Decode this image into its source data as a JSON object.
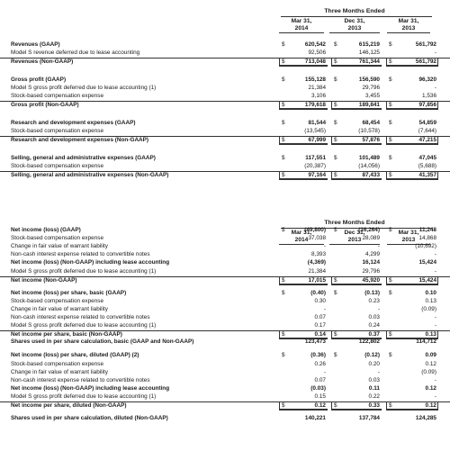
{
  "header1": {
    "title": "Three Months Ended",
    "cols": [
      {
        "line1": "Mar 31,",
        "line2": "2014"
      },
      {
        "line1": "Dec 31,",
        "line2": "2013"
      },
      {
        "line1": "Mar 31,",
        "line2": "2013"
      }
    ]
  },
  "table1": [
    {
      "label": "Revenues (GAAP)",
      "bold": true,
      "cur": [
        "$",
        "$",
        "$"
      ],
      "v": [
        "620,542",
        "615,219",
        "561,792"
      ]
    },
    {
      "label": "Model S revenue deferred due to lease accounting",
      "bold": false,
      "v": [
        "92,506",
        "146,125",
        "-"
      ]
    },
    {
      "label": "Revenues (Non-GAAP)",
      "bold": true,
      "total": true,
      "cur": [
        "$",
        "$",
        "$"
      ],
      "v": [
        "713,048",
        "761,344",
        "561,792"
      ]
    },
    {
      "gap": true
    },
    {
      "label": "Gross profit (GAAP)",
      "bold": true,
      "cur": [
        "$",
        "$",
        "$"
      ],
      "v": [
        "155,128",
        "156,590",
        "96,320"
      ]
    },
    {
      "label": "Model S gross profit deferred due to lease accounting (1)",
      "bold": false,
      "v": [
        "21,384",
        "29,796",
        "-"
      ]
    },
    {
      "label": "Stock-based compensation expense",
      "bold": false,
      "v": [
        "3,106",
        "3,455",
        "1,536"
      ]
    },
    {
      "label": "Gross profit (Non-GAAP)",
      "bold": true,
      "total": true,
      "cur": [
        "$",
        "$",
        "$"
      ],
      "v": [
        "179,618",
        "189,841",
        "97,856"
      ]
    },
    {
      "gap": true
    },
    {
      "label": "Research and development expenses (GAAP)",
      "bold": true,
      "cur": [
        "$",
        "$",
        "$"
      ],
      "v": [
        "81,544",
        "68,454",
        "54,859"
      ]
    },
    {
      "label": "Stock-based compensation expense",
      "bold": false,
      "v": [
        "(13,545)",
        "(10,578)",
        "(7,644)"
      ]
    },
    {
      "label": "Research and development expenses (Non-GAAP)",
      "bold": true,
      "total": true,
      "cur": [
        "$",
        "$",
        "$"
      ],
      "v": [
        "67,999",
        "57,876",
        "47,215"
      ]
    },
    {
      "gap": true
    },
    {
      "label": "Selling, general and administrative expenses (GAAP)",
      "bold": true,
      "cur": [
        "$",
        "$",
        "$"
      ],
      "v": [
        "117,551",
        "101,489",
        "47,045"
      ]
    },
    {
      "label": "Stock-based compensation expense",
      "bold": false,
      "v": [
        "(20,387)",
        "(14,056)",
        "(5,688)"
      ]
    },
    {
      "label": "Selling, general and administrative expenses (Non-GAAP)",
      "bold": true,
      "total": true,
      "cur": [
        "$",
        "$",
        "$"
      ],
      "v": [
        "97,164",
        "87,433",
        "41,357"
      ]
    }
  ],
  "header2": {
    "title": "Three Months Ended",
    "cols": [
      {
        "line1": "Mar 31,",
        "line2": "2014"
      },
      {
        "line1": "Dec 31,",
        "line2": "2013"
      },
      {
        "line1": "Mar 31,",
        "line2": "2013"
      }
    ]
  },
  "table2": [
    {
      "label": "Net income (loss) (GAAP)",
      "bold": true,
      "cur": [
        "$",
        "$",
        "$"
      ],
      "v": [
        "(49,800)",
        "(16,264)",
        "11,248"
      ]
    },
    {
      "label": "Stock-based compensation expense",
      "bold": false,
      "v": [
        "37,038",
        "28,089",
        "14,868"
      ]
    },
    {
      "label": "Change in fair value of warrant liability",
      "bold": false,
      "v": [
        "-",
        "-",
        "(10,692)"
      ]
    },
    {
      "label": "Non-cash interest expense related to convertible notes",
      "bold": false,
      "v": [
        "8,393",
        "4,299",
        "-"
      ]
    },
    {
      "label": "Net income (loss) (Non-GAAP) including lease accounting",
      "bold": true,
      "v": [
        "(4,369)",
        "16,124",
        "15,424"
      ]
    },
    {
      "label": "Model S gross profit deferred due to lease accounting (1)",
      "bold": false,
      "v": [
        "21,384",
        "29,796",
        "-"
      ]
    },
    {
      "label": "Net income (Non-GAAP)",
      "bold": true,
      "total": true,
      "cur": [
        "$",
        "$",
        "$"
      ],
      "v": [
        "17,015",
        "45,920",
        "15,424"
      ]
    },
    {
      "gap": true
    },
    {
      "label": "Net income (loss) per share, basic (GAAP)",
      "bold": true,
      "cur": [
        "$",
        "$",
        "$"
      ],
      "v": [
        "(0.40)",
        "(0.13)",
        "0.10"
      ]
    },
    {
      "label": "Stock-based compensation expense",
      "bold": false,
      "v": [
        "0.30",
        "0.23",
        "0.13"
      ]
    },
    {
      "label": "Change in fair value of warrant liability",
      "bold": false,
      "v": [
        "-",
        "-",
        "(0.09)"
      ]
    },
    {
      "label": "Non-cash interest expense related to convertible notes",
      "bold": false,
      "v": [
        "0.07",
        "0.03",
        "-"
      ]
    },
    {
      "label": "Model S gross profit deferred due to lease accounting (1)",
      "bold": false,
      "v": [
        "0.17",
        "0.24",
        "-"
      ]
    },
    {
      "label": "Net income per share, basic (Non-GAAP)",
      "bold": true,
      "total": true,
      "cur": [
        "$",
        "$",
        "$"
      ],
      "v": [
        "0.14",
        "0.37",
        "0.13"
      ]
    },
    {
      "label": "Shares used in per share calculation, basic (GAAP and Non-GAAP)",
      "bold": true,
      "v": [
        "123,473",
        "122,802",
        "114,712"
      ]
    },
    {
      "gap": true
    },
    {
      "label": "Net income (loss) per share, diluted (GAAP) (2)",
      "bold": true,
      "cur": [
        "$",
        "$",
        "$"
      ],
      "v": [
        "(0.36)",
        "(0.12)",
        "0.09"
      ]
    },
    {
      "label": "Stock-based compensation expense",
      "bold": false,
      "v": [
        "0.26",
        "0.20",
        "0.12"
      ]
    },
    {
      "label": "Change in fair value of warrant liability",
      "bold": false,
      "v": [
        "-",
        "-",
        "(0.09)"
      ]
    },
    {
      "label": "Non-cash interest expense related to convertible notes",
      "bold": false,
      "v": [
        "0.07",
        "0.03",
        "-"
      ]
    },
    {
      "label": "Net income (loss) (Non-GAAP) including lease accounting",
      "bold": true,
      "v": [
        "(0.03)",
        "0.11",
        "0.12"
      ]
    },
    {
      "label": "Model S gross profit deferred due to lease accounting (1)",
      "bold": false,
      "v": [
        "0.15",
        "0.22",
        "-"
      ]
    },
    {
      "label": "Net income per share, diluted (Non-GAAP)",
      "bold": true,
      "total": true,
      "cur": [
        "$",
        "$",
        "$"
      ],
      "v": [
        "0.12",
        "0.33",
        "0.12"
      ]
    },
    {
      "gap": true
    },
    {
      "label": "Shares used in per share calculation, diluted (Non-GAAP)",
      "bold": true,
      "v": [
        "140,221",
        "137,784",
        "124,285"
      ]
    }
  ]
}
